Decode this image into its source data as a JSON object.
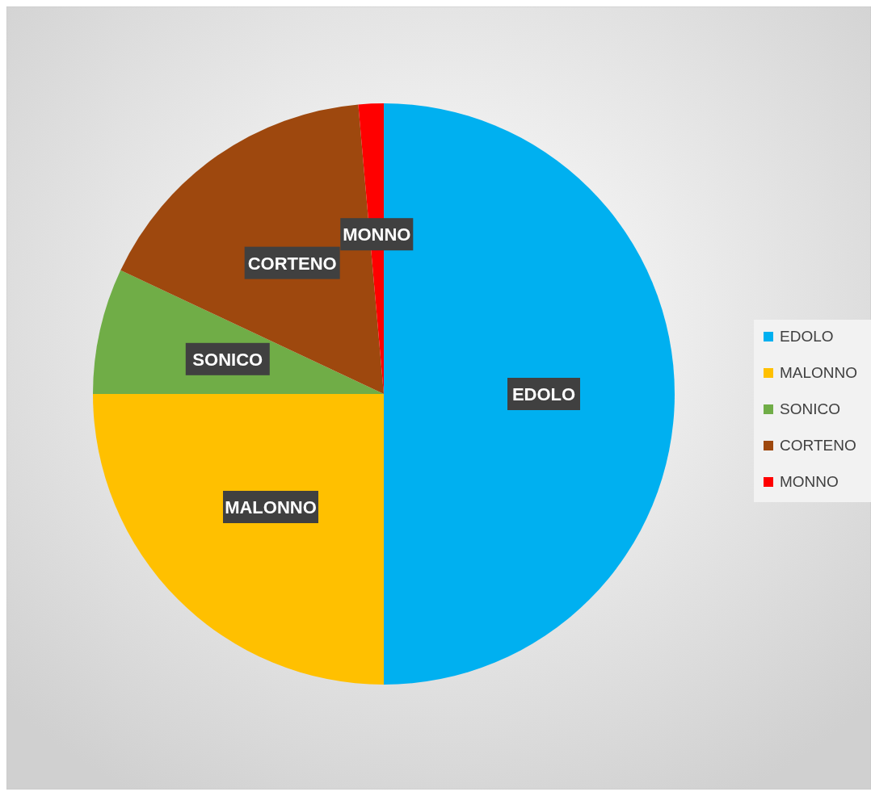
{
  "chart_data": {
    "type": "pie",
    "categories": [
      "EDOLO",
      "MALONNO",
      "SONICO",
      "CORTENO",
      "MONNO"
    ],
    "values": [
      50,
      25,
      7,
      16.6,
      1.4
    ],
    "colors": [
      "#00b0f0",
      "#ffc000",
      "#70ad47",
      "#9e480e",
      "#ff0000"
    ],
    "legend": "right"
  }
}
